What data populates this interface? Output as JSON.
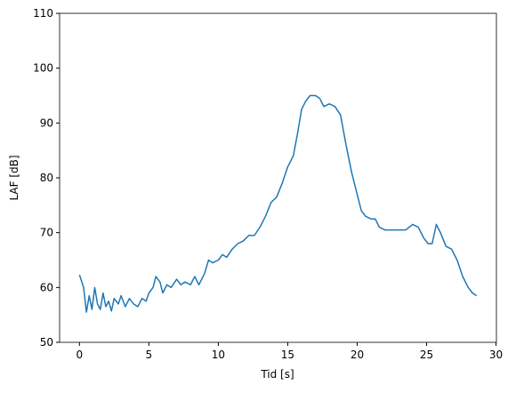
{
  "chart_data": {
    "type": "line",
    "xlabel": "Tid [s]",
    "ylabel": "LAF [dB]",
    "color": "#1f77b4",
    "x": [
      0,
      0.3,
      0.5,
      0.7,
      0.9,
      1.1,
      1.3,
      1.5,
      1.7,
      1.9,
      2.1,
      2.3,
      2.5,
      2.8,
      3,
      3.3,
      3.6,
      3.9,
      4.2,
      4.5,
      4.8,
      5,
      5.3,
      5.5,
      5.8,
      6,
      6.3,
      6.6,
      7,
      7.3,
      7.6,
      8,
      8.3,
      8.6,
      9,
      9.3,
      9.6,
      10,
      10.3,
      10.6,
      11,
      11.4,
      11.8,
      12.2,
      12.6,
      13,
      13.4,
      13.8,
      14.2,
      14.6,
      15,
      15.4,
      15.7,
      16,
      16.3,
      16.6,
      17,
      17.3,
      17.6,
      18,
      18.4,
      18.8,
      19.2,
      19.6,
      20,
      20.3,
      20.6,
      21,
      21.3,
      21.6,
      22,
      22.5,
      23,
      23.5,
      24,
      24.4,
      24.8,
      25.1,
      25.4,
      25.7,
      26,
      26.4,
      26.8,
      27.2,
      27.6,
      28,
      28.3,
      28.6
    ],
    "values": [
      62.3,
      60,
      55.5,
      58.5,
      56,
      60,
      57,
      56,
      59,
      56.5,
      57.5,
      55.7,
      58,
      57,
      58.5,
      56.5,
      58,
      57,
      56.5,
      58,
      57.5,
      59,
      60,
      62,
      61,
      59,
      60.5,
      60,
      61.5,
      60.5,
      61,
      60.5,
      62,
      60.5,
      62.5,
      65,
      64.5,
      65,
      66,
      65.5,
      67,
      68,
      68.5,
      69.5,
      69.5,
      71,
      73,
      75.5,
      76.5,
      79,
      82,
      84,
      88,
      92.5,
      94,
      95,
      95,
      94.5,
      93,
      93.5,
      93,
      91.5,
      86,
      81,
      77,
      74,
      73,
      72.5,
      72.5,
      71,
      70.5,
      70.5,
      70.5,
      70.5,
      71.5,
      71,
      69,
      68,
      68,
      71.5,
      70,
      67.5,
      67,
      65,
      62,
      60,
      59,
      58.5
    ],
    "xlim": [
      -1.43,
      30.03
    ],
    "ylim": [
      50,
      110
    ],
    "xticks": [
      0,
      5,
      10,
      15,
      20,
      25,
      30
    ],
    "yticks": [
      50,
      60,
      70,
      80,
      90,
      100,
      110
    ]
  }
}
